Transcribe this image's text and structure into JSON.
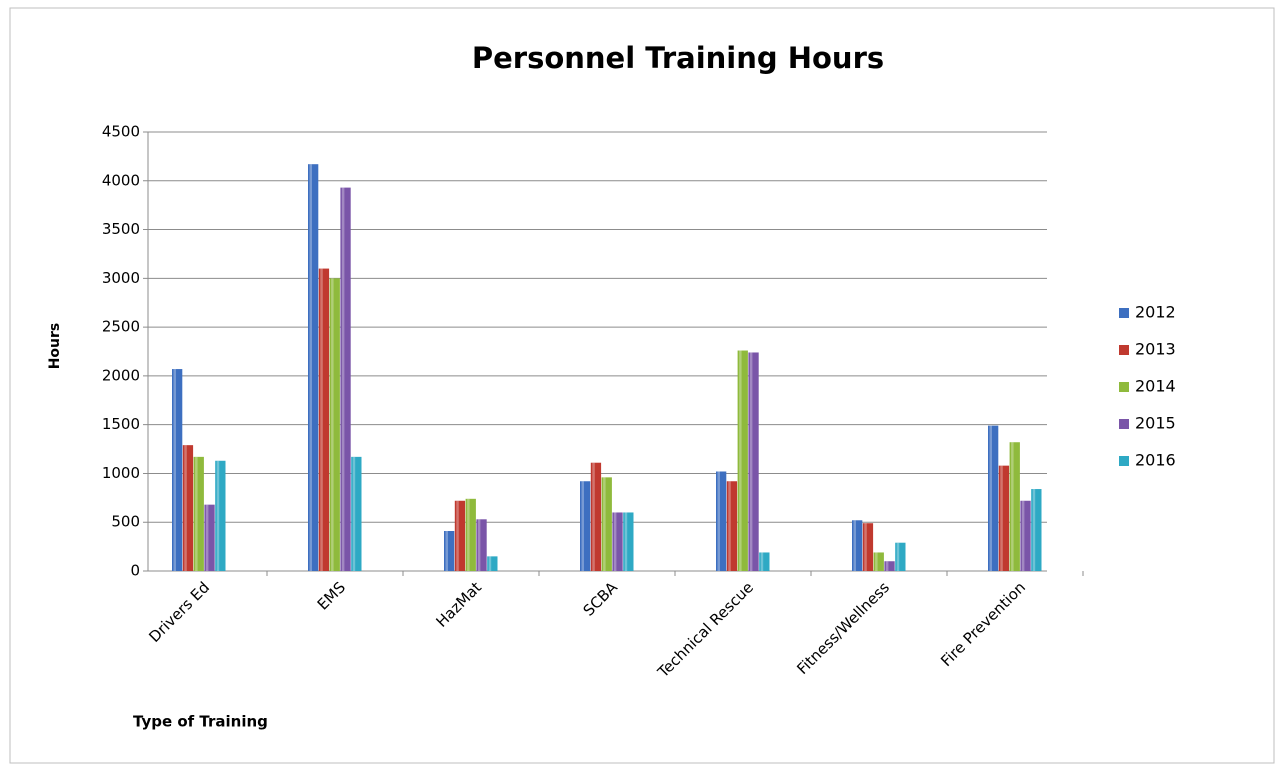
{
  "chart_data": {
    "type": "bar",
    "title": "Personnel Training Hours",
    "x_label": "Type of Training",
    "y_label": "Hours",
    "categories": [
      "Drivers Ed",
      "EMS",
      "HazMat",
      "SCBA",
      "Technical Rescue",
      "Fitness/Wellness",
      "Fire Prevention"
    ],
    "series": [
      {
        "name": "2012",
        "color": "#3d6fc0",
        "values": [
          2070,
          4170,
          410,
          920,
          1020,
          520,
          1490
        ]
      },
      {
        "name": "2013",
        "color": "#c0392f",
        "values": [
          1290,
          3100,
          720,
          1110,
          920,
          490,
          1080
        ]
      },
      {
        "name": "2014",
        "color": "#8fba3c",
        "values": [
          1170,
          3000,
          740,
          960,
          2260,
          190,
          1320
        ]
      },
      {
        "name": "2015",
        "color": "#7a55a8",
        "values": [
          680,
          3930,
          530,
          600,
          2240,
          100,
          720
        ]
      },
      {
        "name": "2016",
        "color": "#2ea9c4",
        "values": [
          1130,
          1170,
          150,
          600,
          190,
          290,
          840
        ]
      }
    ],
    "ylim": [
      0,
      4500
    ],
    "yticks": [
      0,
      500,
      1000,
      1500,
      2000,
      2500,
      3000,
      3500,
      4000,
      4500
    ],
    "grid": true,
    "legend": "right"
  }
}
